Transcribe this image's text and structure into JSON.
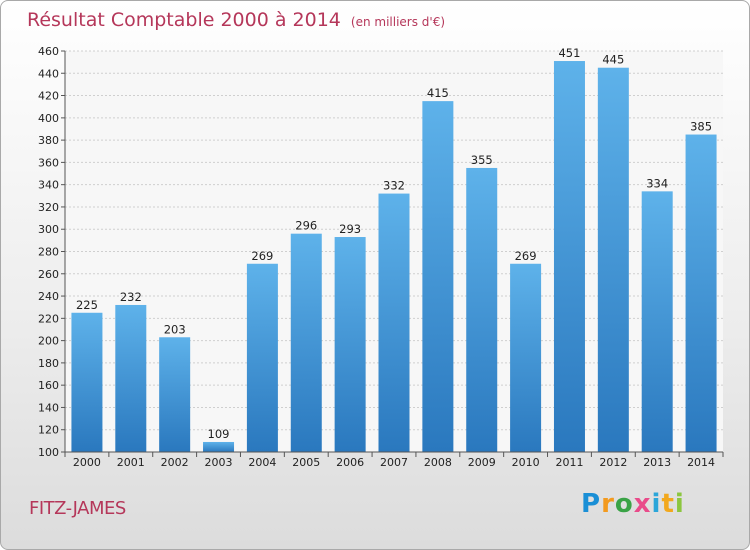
{
  "page": {
    "commune": "FITZ-JAMES",
    "logo_letters": [
      "P",
      "r",
      "o",
      "x",
      "i",
      "t",
      "i"
    ]
  },
  "chart_data": {
    "type": "bar",
    "title": "Résultat Comptable 2000 à 2014",
    "subtitle": "(en milliers d'€)",
    "xlabel": "",
    "ylabel": "",
    "categories": [
      "2000",
      "2001",
      "2002",
      "2003",
      "2004",
      "2005",
      "2006",
      "2007",
      "2008",
      "2009",
      "2010",
      "2011",
      "2012",
      "2013",
      "2014"
    ],
    "values": [
      225,
      232,
      203,
      109,
      269,
      296,
      293,
      332,
      415,
      355,
      269,
      451,
      445,
      334,
      385
    ],
    "ylim": [
      100,
      460
    ],
    "yticks": [
      100,
      120,
      140,
      160,
      180,
      200,
      220,
      240,
      260,
      280,
      300,
      320,
      340,
      360,
      380,
      400,
      420,
      440,
      460
    ],
    "grid": true,
    "colors": {
      "bar_top": "#5eb2ea",
      "bar_bottom": "#2a78be",
      "title": "#b5375a",
      "grid": "#cfcfcf"
    }
  }
}
